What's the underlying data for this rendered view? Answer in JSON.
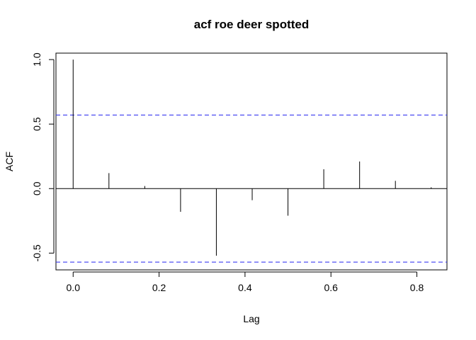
{
  "chart_data": {
    "type": "bar",
    "title": "acf roe deer spotted",
    "xlabel": "Lag",
    "ylabel": "ACF",
    "xlim": [
      -0.04,
      0.87
    ],
    "ylim": [
      -0.63,
      1.05
    ],
    "x_ticks": [
      0.0,
      0.2,
      0.4,
      0.6,
      0.8
    ],
    "x_tick_labels": [
      "0.0",
      "0.2",
      "0.4",
      "0.6",
      "0.8"
    ],
    "y_ticks": [
      -0.5,
      0.0,
      0.5,
      1.0
    ],
    "y_tick_labels": [
      "-0.5",
      "0.0",
      "0.5",
      "1.0"
    ],
    "lags": [
      0.0,
      0.0833,
      0.1667,
      0.25,
      0.3333,
      0.4167,
      0.5,
      0.5833,
      0.6667,
      0.75,
      0.8333
    ],
    "acf": [
      1.0,
      0.12,
      0.02,
      -0.18,
      -0.52,
      -0.09,
      -0.21,
      0.15,
      0.21,
      0.06,
      0.01
    ],
    "confidence_bound": 0.57,
    "confidence_color": "#3b3bf0",
    "grid": false
  }
}
